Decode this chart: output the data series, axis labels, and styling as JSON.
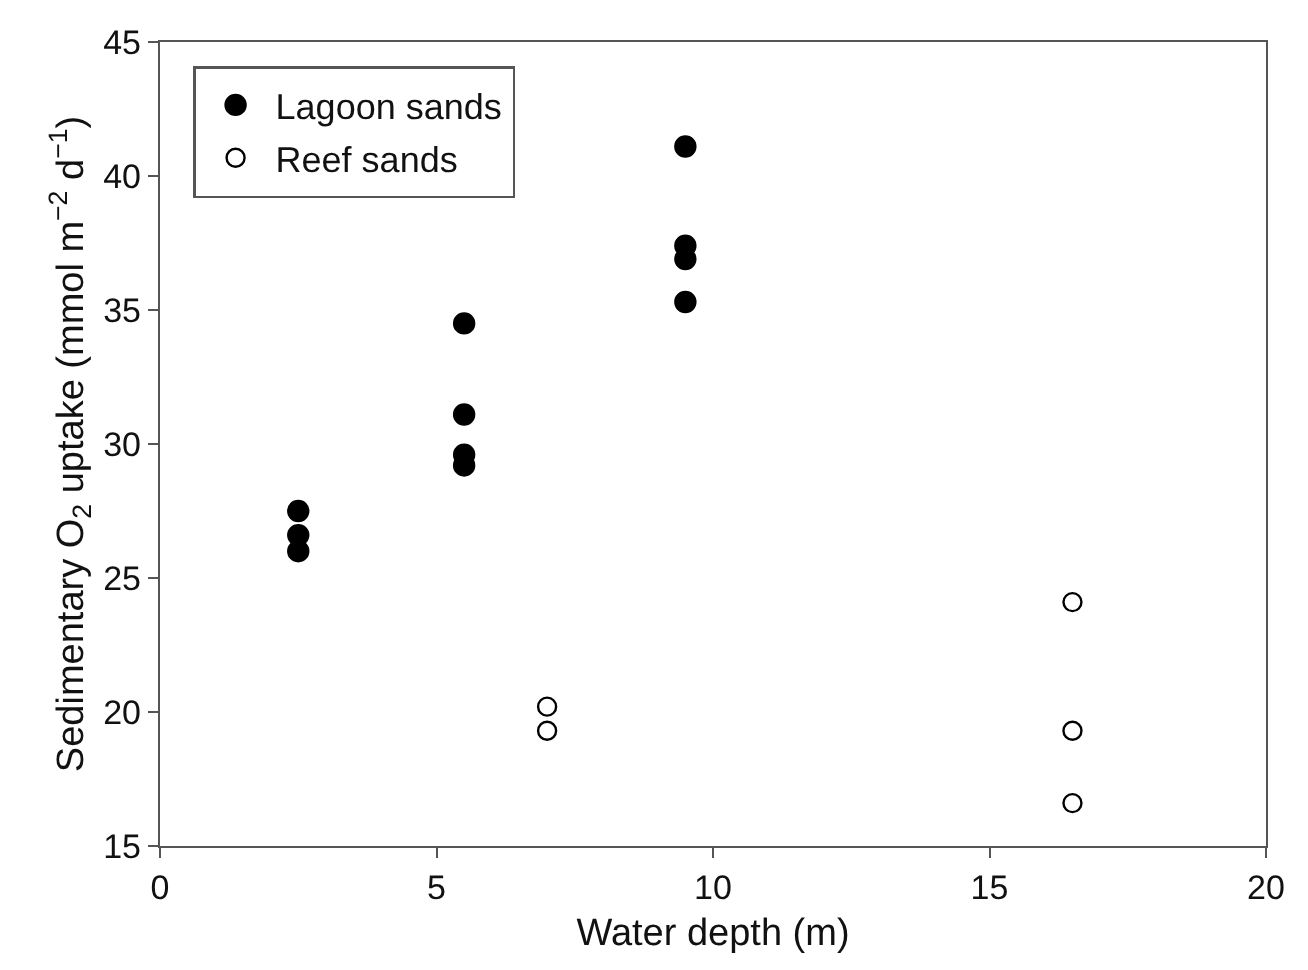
{
  "chart_data": {
    "type": "scatter",
    "xlabel": "Water depth (m)",
    "ylabel": "Sedimentary O$_{2}$ uptake (mmol m$^{−2}$ d$^{−1}$)",
    "series": [
      {
        "name": "Lagoon sands",
        "color": "#000000",
        "marker": "circle",
        "x": [
          2.5,
          2.5,
          2.5,
          5.5,
          5.5,
          5.5,
          5.5,
          9.5,
          9.5,
          9.5,
          9.5
        ],
        "values": [
          27.5,
          26.6,
          26.0,
          34.5,
          31.1,
          29.6,
          29.2,
          41.1,
          37.4,
          36.9,
          35.3
        ]
      },
      {
        "name": "Reef sands",
        "color": "#000000",
        "marker": "circle-open",
        "x": [
          7,
          7,
          16.5,
          16.5,
          16.5
        ],
        "values": [
          20.2,
          19.3,
          24.1,
          19.3,
          16.6
        ]
      }
    ],
    "xlim": [
      0,
      20
    ],
    "xticks": [
      0,
      5,
      10,
      15,
      20
    ],
    "ylim": [
      15,
      45
    ],
    "yticks": [
      15,
      20,
      25,
      30,
      35,
      40,
      45
    ],
    "legend": "top left"
  }
}
